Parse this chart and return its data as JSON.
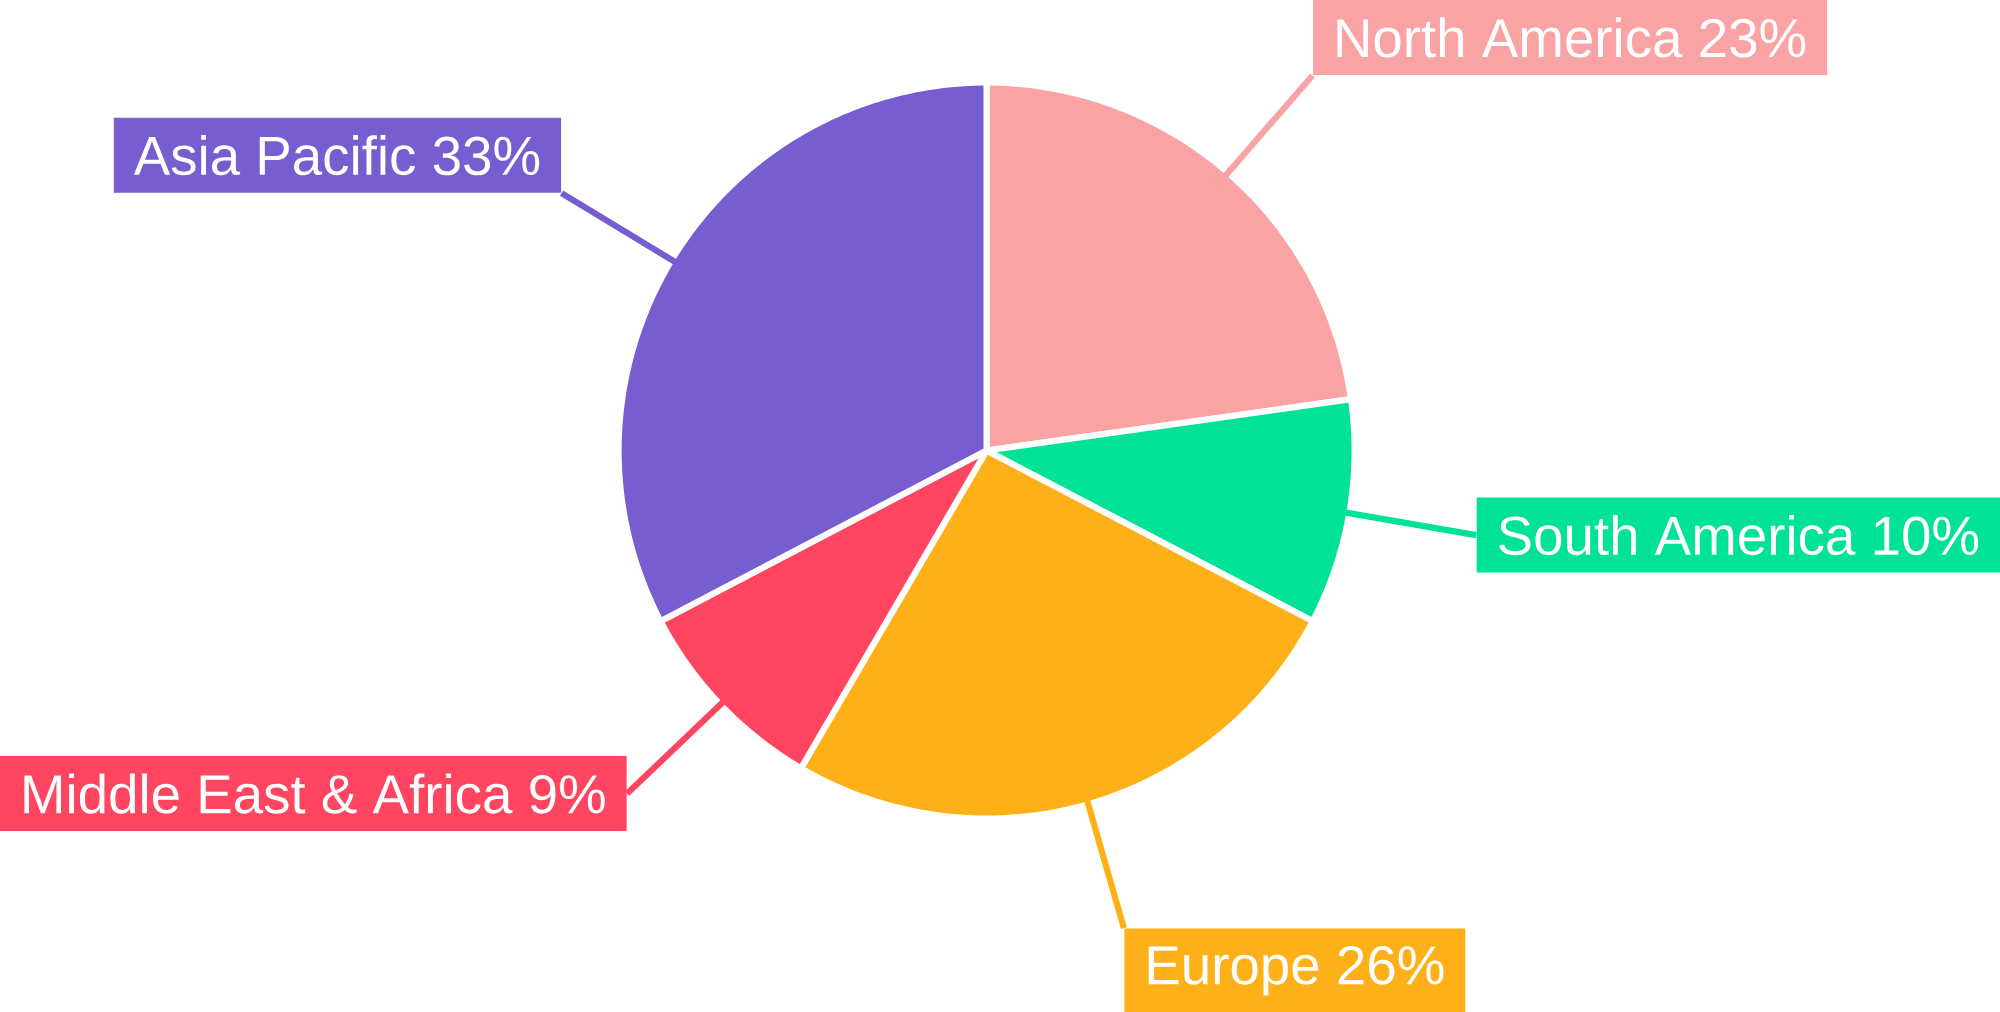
{
  "chart_data": {
    "type": "pie",
    "categories": [
      "North America",
      "South America",
      "Europe",
      "Middle East & Africa",
      "Asia Pacific"
    ],
    "values": [
      23,
      10,
      26,
      9,
      33
    ],
    "value_labels": [
      "23%",
      "10%",
      "26%",
      "9%",
      "33%"
    ],
    "colors": [
      "#f9a3a4",
      "#00e396",
      "#feb019",
      "#ff4560",
      "#775dd0"
    ]
  }
}
